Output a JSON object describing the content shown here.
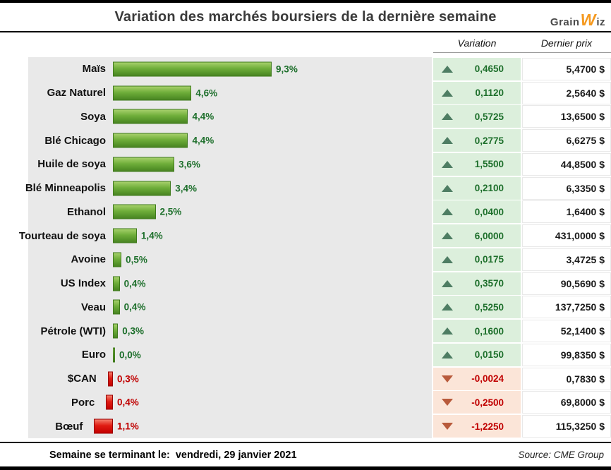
{
  "header": {
    "title": "Variation des marchés boursiers de la dernière semaine",
    "logo_grain": "Grain",
    "logo_w": "W",
    "logo_iz": "iz"
  },
  "columns": {
    "variation": "Variation",
    "dernier_prix": "Dernier prix"
  },
  "footer": {
    "left_label": "Semaine se terminant le:",
    "left_value": "vendredi, 29 janvier 2021",
    "source": "Source: CME Group"
  },
  "colors": {
    "bar_positive": "#5ba033",
    "bar_negative": "#d40000",
    "positive_text": "#1d6f2b",
    "negative_text": "#c00000",
    "positive_cell_bg": "#dcefdc",
    "negative_cell_bg": "#fbe5d8",
    "triangle_up": "#4e7d63",
    "triangle_down": "#b85a3b",
    "chart_background": "#e9e9e9",
    "logo_orange": "#f5991f"
  },
  "rows": [
    {
      "label": "Maïs",
      "pct": 9.3,
      "pct_label": "9,3%",
      "direction": "up",
      "variation": "0,4650",
      "price": "5,4700 $"
    },
    {
      "label": "Gaz Naturel",
      "pct": 4.6,
      "pct_label": "4,6%",
      "direction": "up",
      "variation": "0,1120",
      "price": "2,5640 $"
    },
    {
      "label": "Soya",
      "pct": 4.4,
      "pct_label": "4,4%",
      "direction": "up",
      "variation": "0,5725",
      "price": "13,6500 $"
    },
    {
      "label": "Blé Chicago",
      "pct": 4.4,
      "pct_label": "4,4%",
      "direction": "up",
      "variation": "0,2775",
      "price": "6,6275 $"
    },
    {
      "label": "Huile de soya",
      "pct": 3.6,
      "pct_label": "3,6%",
      "direction": "up",
      "variation": "1,5500",
      "price": "44,8500 $"
    },
    {
      "label": "Blé Minneapolis",
      "pct": 3.4,
      "pct_label": "3,4%",
      "direction": "up",
      "variation": "0,2100",
      "price": "6,3350 $"
    },
    {
      "label": "Ethanol",
      "pct": 2.5,
      "pct_label": "2,5%",
      "direction": "up",
      "variation": "0,0400",
      "price": "1,6400 $"
    },
    {
      "label": "Tourteau de soya",
      "pct": 1.4,
      "pct_label": "1,4%",
      "direction": "up",
      "variation": "6,0000",
      "price": "431,0000 $"
    },
    {
      "label": "Avoine",
      "pct": 0.5,
      "pct_label": "0,5%",
      "direction": "up",
      "variation": "0,0175",
      "price": "3,4725 $"
    },
    {
      "label": "US Index",
      "pct": 0.4,
      "pct_label": "0,4%",
      "direction": "up",
      "variation": "0,3570",
      "price": "90,5690 $"
    },
    {
      "label": "Veau",
      "pct": 0.4,
      "pct_label": "0,4%",
      "direction": "up",
      "variation": "0,5250",
      "price": "137,7250 $"
    },
    {
      "label": "Pétrole (WTI)",
      "pct": 0.3,
      "pct_label": "0,3%",
      "direction": "up",
      "variation": "0,1600",
      "price": "52,1400 $"
    },
    {
      "label": "Euro",
      "pct": 0.0,
      "pct_label": "0,0%",
      "direction": "up",
      "variation": "0,0150",
      "price": "99,8350 $"
    },
    {
      "label": "$CAN",
      "pct": -0.3,
      "pct_label": "0,3%",
      "direction": "down",
      "variation": "-0,0024",
      "price": "0,7830 $"
    },
    {
      "label": "Porc",
      "pct": -0.4,
      "pct_label": "0,4%",
      "direction": "down",
      "variation": "-0,2500",
      "price": "69,8000 $"
    },
    {
      "label": "Bœuf",
      "pct": -1.1,
      "pct_label": "1,1%",
      "direction": "down",
      "variation": "-1,2250",
      "price": "115,3250 $"
    }
  ],
  "chart_data": {
    "type": "bar",
    "orientation": "horizontal",
    "title": "Variation des marchés boursiers de la dernière semaine",
    "categories": [
      "Maïs",
      "Gaz Naturel",
      "Soya",
      "Blé Chicago",
      "Huile de soya",
      "Blé Minneapolis",
      "Ethanol",
      "Tourteau de soya",
      "Avoine",
      "US Index",
      "Veau",
      "Pétrole (WTI)",
      "Euro",
      "$CAN",
      "Porc",
      "Bœuf"
    ],
    "series": [
      {
        "name": "Variation hebdomadaire (%)",
        "values": [
          9.3,
          4.6,
          4.4,
          4.4,
          3.6,
          3.4,
          2.5,
          1.4,
          0.5,
          0.4,
          0.4,
          0.3,
          0.0,
          -0.3,
          -0.4,
          -1.1
        ]
      },
      {
        "name": "Variation",
        "values": [
          0.465,
          0.112,
          0.5725,
          0.2775,
          1.55,
          0.21,
          0.04,
          6.0,
          0.0175,
          0.357,
          0.525,
          0.16,
          0.015,
          -0.0024,
          -0.25,
          -1.225
        ]
      },
      {
        "name": "Dernier prix ($)",
        "values": [
          5.47,
          2.564,
          13.65,
          6.6275,
          44.85,
          6.335,
          1.64,
          431.0,
          3.4725,
          90.569,
          137.725,
          52.14,
          99.835,
          0.783,
          69.8,
          115.325
        ]
      }
    ],
    "value_labels": true,
    "xlim": [
      -2,
      10
    ],
    "grid": false,
    "legend_position": "none",
    "footnote_left": "Semaine se terminant le: vendredi, 29 janvier 2021",
    "footnote_right": "Source: CME Group"
  }
}
